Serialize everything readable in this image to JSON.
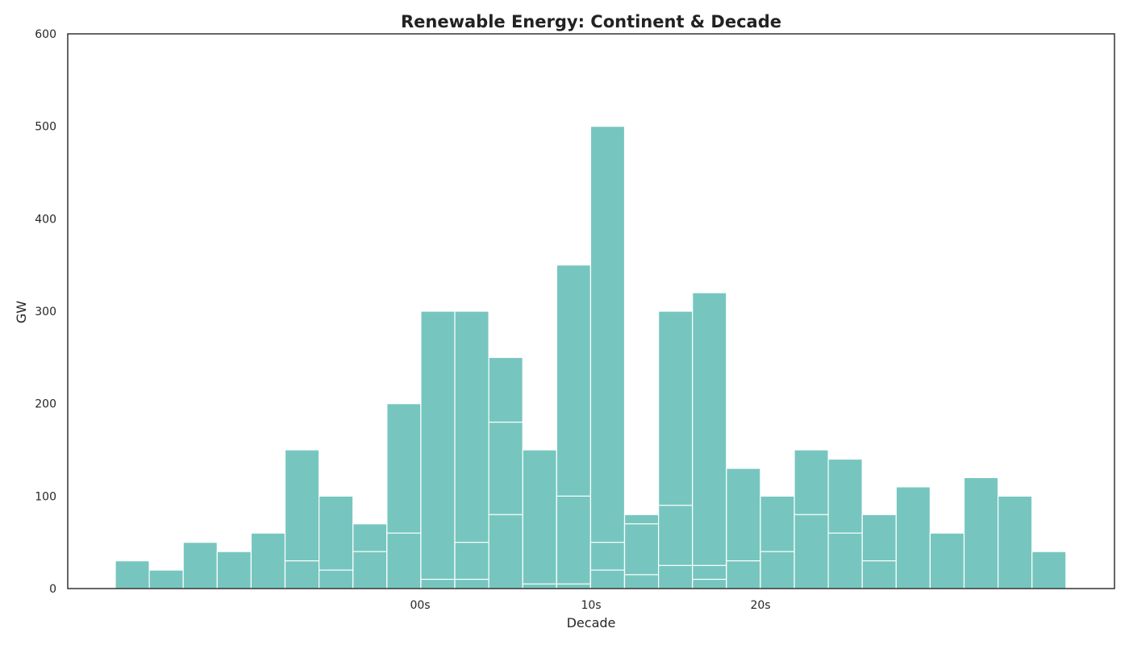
{
  "chart_data": {
    "type": "bar",
    "title": "Renewable Energy: Continent & Decade",
    "xlabel": "Decade",
    "ylabel": "GW",
    "ylim": [
      0,
      600
    ],
    "yticks": [
      0,
      100,
      200,
      300,
      400,
      500,
      600
    ],
    "xtick_labels": [
      "00s",
      "10s",
      "20s"
    ],
    "grid": false,
    "legend": "none",
    "bar_color": "#76c6bf",
    "edge_color": "#ffffff",
    "bars": [
      {
        "segments": [
          30
        ]
      },
      {
        "segments": [
          20
        ]
      },
      {
        "segments": [
          50
        ]
      },
      {
        "segments": [
          40
        ]
      },
      {
        "segments": [
          60
        ]
      },
      {
        "segments": [
          30,
          150
        ]
      },
      {
        "segments": [
          20,
          100
        ]
      },
      {
        "segments": [
          40,
          70
        ]
      },
      {
        "segments": [
          60,
          200
        ]
      },
      {
        "segments": [
          10,
          300
        ]
      },
      {
        "segments": [
          10,
          50,
          300
        ]
      },
      {
        "segments": [
          80,
          180,
          250
        ]
      },
      {
        "segments": [
          5,
          150
        ]
      },
      {
        "segments": [
          5,
          100,
          350
        ]
      },
      {
        "segments": [
          20,
          50,
          500
        ]
      },
      {
        "segments": [
          15,
          70,
          80
        ]
      },
      {
        "segments": [
          25,
          90,
          300
        ]
      },
      {
        "segments": [
          10,
          25,
          320
        ]
      },
      {
        "segments": [
          30,
          130
        ]
      },
      {
        "segments": [
          40,
          100
        ]
      },
      {
        "segments": [
          80,
          150
        ]
      },
      {
        "segments": [
          60,
          140
        ]
      },
      {
        "segments": [
          30,
          80
        ]
      },
      {
        "segments": [
          110
        ]
      },
      {
        "segments": [
          60
        ]
      },
      {
        "segments": [
          120
        ]
      },
      {
        "segments": [
          100
        ]
      },
      {
        "segments": [
          40
        ]
      }
    ]
  }
}
